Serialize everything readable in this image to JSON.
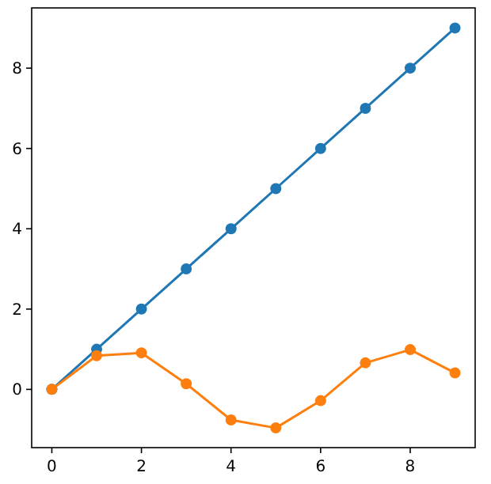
{
  "chart_data": {
    "type": "line",
    "x": [
      0,
      1,
      2,
      3,
      4,
      5,
      6,
      7,
      8,
      9
    ],
    "marker": "circle",
    "xlim": [
      -0.45,
      9.45
    ],
    "ylim": [
      -1.45,
      9.5
    ],
    "xticks": [
      0,
      2,
      4,
      6,
      8
    ],
    "yticks": [
      0,
      2,
      4,
      6,
      8
    ],
    "grid": false,
    "series": [
      {
        "color": "#1f77b4",
        "values": [
          0,
          1,
          2,
          3,
          4,
          5,
          6,
          7,
          8,
          9
        ]
      },
      {
        "color": "#ff7f0e",
        "values": [
          0,
          0.84,
          0.91,
          0.14,
          -0.76,
          -0.96,
          -0.28,
          0.66,
          0.99,
          0.41
        ]
      }
    ]
  }
}
